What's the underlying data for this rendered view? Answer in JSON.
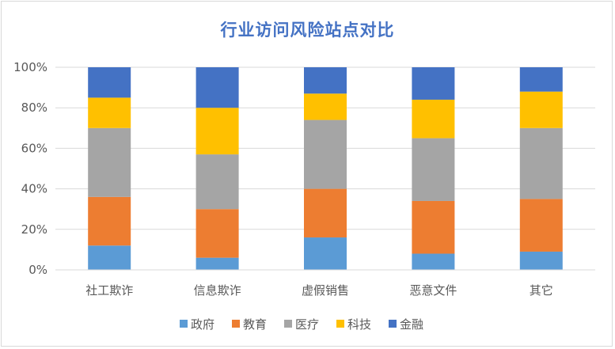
{
  "chart_data": {
    "type": "bar",
    "stacked": true,
    "percent": true,
    "title": "行业访问风险站点对比",
    "categories": [
      "社工欺诈",
      "信息欺诈",
      "虚假销售",
      "恶意文件",
      "其它"
    ],
    "y_ticks": [
      "0%",
      "20%",
      "40%",
      "60%",
      "80%",
      "100%"
    ],
    "ylim": [
      0,
      100
    ],
    "grid": true,
    "legend_position": "bottom",
    "series": [
      {
        "name": "政府",
        "color": "#5b9bd5",
        "values": [
          12,
          6,
          16,
          8,
          9
        ]
      },
      {
        "name": "教育",
        "color": "#ed7d31",
        "values": [
          24,
          24,
          24,
          26,
          26
        ]
      },
      {
        "name": "医疗",
        "color": "#a5a5a5",
        "values": [
          34,
          27,
          34,
          31,
          35
        ]
      },
      {
        "name": "科技",
        "color": "#ffc000",
        "values": [
          15,
          23,
          13,
          19,
          18
        ]
      },
      {
        "name": "金融",
        "color": "#4472c4",
        "values": [
          15,
          20,
          13,
          16,
          12
        ]
      }
    ]
  }
}
